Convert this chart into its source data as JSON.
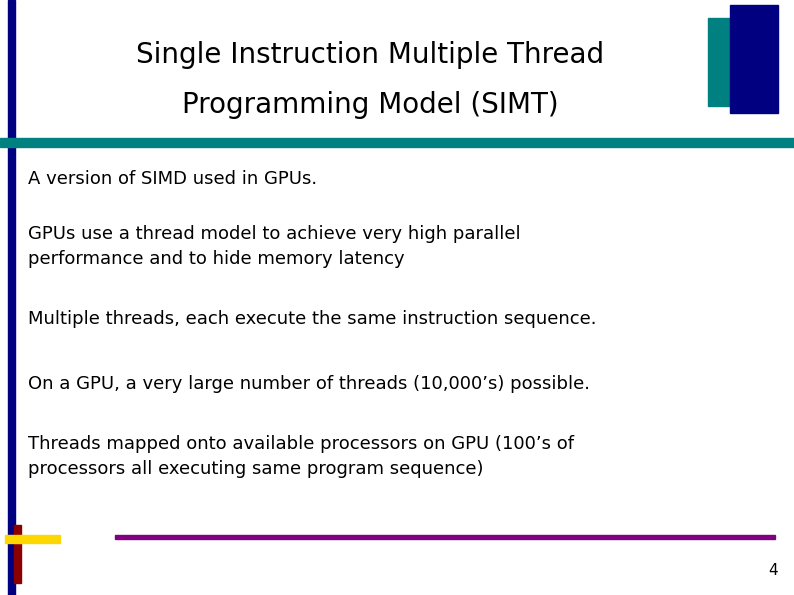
{
  "title_line1": "Single Instruction Multiple Thread",
  "title_line2": "Programming Model (SIMT)",
  "bullet_points": [
    "A version of SIMD used in GPUs.",
    "GPUs use a thread model to achieve very high parallel\nperformance and to hide memory latency",
    "Multiple threads, each execute the same instruction sequence.",
    "On a GPU, a very large number of threads (10,000’s) possible.",
    "Threads mapped onto available processors on GPU (100’s of\nprocessors all executing same program sequence)"
  ],
  "bg_color": "#ffffff",
  "title_color": "#000000",
  "title_bar_color": "#008080",
  "left_bar_color": "#000080",
  "teal_rect_color": "#008080",
  "navy_rect_color": "#000080",
  "bottom_bar_color": "#800080",
  "bottom_cross_vertical_color": "#8B0000",
  "bottom_cross_horizontal_color": "#FFD700",
  "slide_number": "4",
  "text_color": "#000000",
  "font_size_title": 20,
  "font_size_body": 13
}
